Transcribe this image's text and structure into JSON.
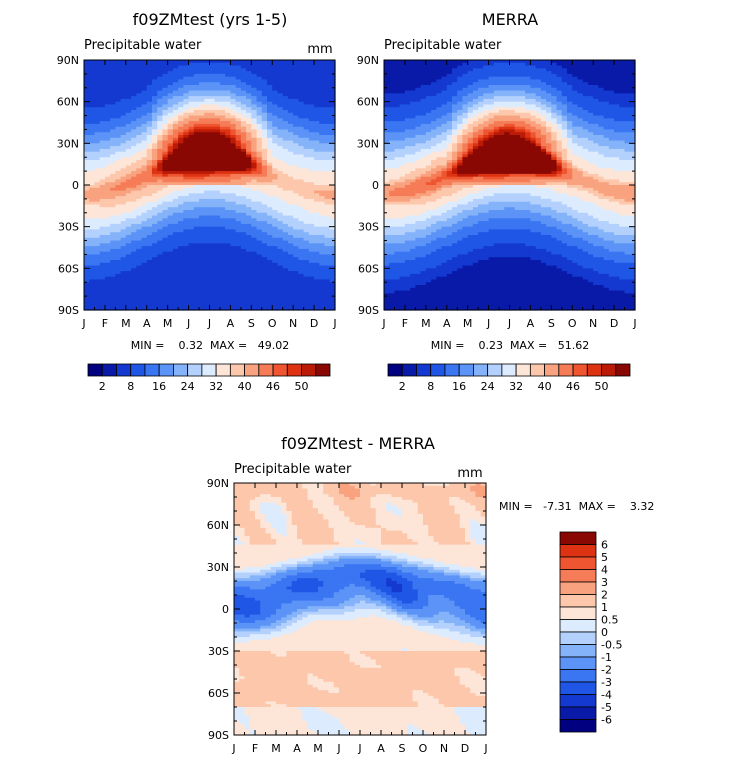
{
  "figure": {
    "width": 733,
    "height": 765
  },
  "chart_data": [
    {
      "type": "heatmap",
      "title": "f09ZMtest (yrs 1-5)",
      "subtitle": "Precipitable water",
      "units": "mm",
      "xticks": [
        "J",
        "F",
        "M",
        "A",
        "M",
        "J",
        "J",
        "A",
        "S",
        "O",
        "N",
        "D",
        "J"
      ],
      "yticks": [
        "90N",
        "60N",
        "30N",
        "0",
        "30S",
        "60S",
        "90S"
      ],
      "ylim": [
        -90,
        90
      ],
      "stats": "MIN =    0.32  MAX =   49.02",
      "field": {
        "peak": 48,
        "summer_peak": 45,
        "ridge_amp": 14,
        "ridge_lat": 7,
        "ridge_width": 13,
        "nh_shoulder": 22,
        "floor": 2
      },
      "colorbar": {
        "labels": [
          "2",
          "8",
          "16",
          "24",
          "32",
          "40",
          "46",
          "50"
        ],
        "levels": [
          0,
          2,
          4,
          8,
          12,
          16,
          20,
          24,
          28,
          32,
          36,
          40,
          44,
          46,
          48,
          50
        ],
        "colors": [
          "#000080",
          "#0a1aa8",
          "#1439d0",
          "#1f56e6",
          "#3a75f2",
          "#5c93f7",
          "#85b3fa",
          "#b3d1fc",
          "#dcebfd",
          "#fde6d8",
          "#fcc7ab",
          "#f9a27f",
          "#f57c56",
          "#ee5530",
          "#dd3313",
          "#bb1a06",
          "#8a0804"
        ]
      }
    },
    {
      "type": "heatmap",
      "title": "MERRA",
      "subtitle": "Precipitable water",
      "units": "",
      "xticks": [
        "J",
        "F",
        "M",
        "A",
        "M",
        "J",
        "J",
        "A",
        "S",
        "O",
        "N",
        "D",
        "J"
      ],
      "yticks": [
        "90N",
        "60N",
        "30N",
        "0",
        "30S",
        "60S",
        "90S"
      ],
      "ylim": [
        -90,
        90
      ],
      "stats": "MIN =    0.23  MAX =   51.62",
      "field": {
        "peak": 51,
        "summer_peak": 49,
        "ridge_amp": 13,
        "ridge_lat": 7,
        "ridge_width": 13,
        "nh_shoulder": 21,
        "floor": 1
      },
      "colorbar": {
        "labels": [
          "2",
          "8",
          "16",
          "24",
          "32",
          "40",
          "46",
          "50"
        ],
        "levels": [
          0,
          2,
          4,
          8,
          12,
          16,
          20,
          24,
          28,
          32,
          36,
          40,
          44,
          46,
          48,
          50
        ],
        "colors": [
          "#000080",
          "#0a1aa8",
          "#1439d0",
          "#1f56e6",
          "#3a75f2",
          "#5c93f7",
          "#85b3fa",
          "#b3d1fc",
          "#dcebfd",
          "#fde6d8",
          "#fcc7ab",
          "#f9a27f",
          "#f57c56",
          "#ee5530",
          "#dd3313",
          "#bb1a06",
          "#8a0804"
        ]
      }
    },
    {
      "type": "heatmap",
      "title": "f09ZMtest - MERRA",
      "subtitle": "Precipitable water",
      "units": "mm",
      "xticks": [
        "J",
        "F",
        "M",
        "A",
        "M",
        "J",
        "J",
        "A",
        "S",
        "O",
        "N",
        "D",
        "J"
      ],
      "yticks": [
        "90N",
        "60N",
        "30N",
        "0",
        "30S",
        "60S",
        "90S"
      ],
      "ylim": [
        -90,
        90
      ],
      "stats": "MIN =   -7.31  MAX =    3.32",
      "colorbar": {
        "labels": [
          "6",
          "5",
          "4",
          "3",
          "2",
          "1",
          "0.5",
          "0",
          "-0.5",
          "-1",
          "-2",
          "-3",
          "-4",
          "-5",
          "-6"
        ],
        "levels": [
          -6,
          -5,
          -4,
          -3,
          -2,
          -1,
          -0.5,
          0,
          0.5,
          1,
          2,
          3,
          4,
          5,
          6
        ],
        "colors": [
          "#000080",
          "#0a1aa8",
          "#1439d0",
          "#1f56e6",
          "#3a75f2",
          "#5c93f7",
          "#85b3fa",
          "#b3d1fc",
          "#dcebfd",
          "#fde6d8",
          "#fcc7ab",
          "#f9a27f",
          "#f57c56",
          "#ee5530",
          "#dd3313",
          "#8a0804"
        ]
      }
    }
  ]
}
